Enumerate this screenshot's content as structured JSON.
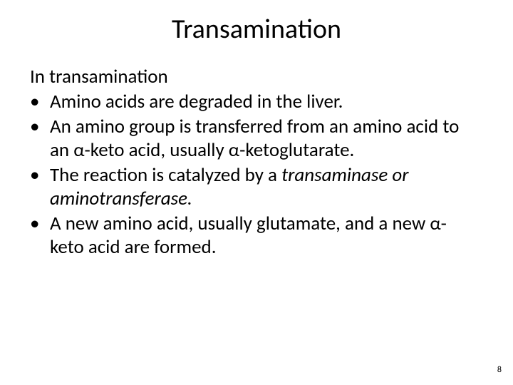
{
  "title": "Transamination",
  "intro": "In transamination",
  "bullets": [
    {
      "text": "Amino acids are degraded in the liver."
    },
    {
      "text": "An amino group is transferred from an amino acid to an α-keto acid, usually α-ketoglutarate."
    },
    {
      "prefix": "The reaction is catalyzed by a ",
      "italic": "transaminase or aminotransferase."
    },
    {
      "text": "A new amino acid, usually glutamate, and a new α-keto acid are formed."
    }
  ],
  "bullet_marker": "•",
  "page_number": "8",
  "colors": {
    "text": "#000000",
    "background": "#ffffff"
  },
  "fontsize": {
    "title": 38,
    "body": 27,
    "pagenum": 12
  }
}
